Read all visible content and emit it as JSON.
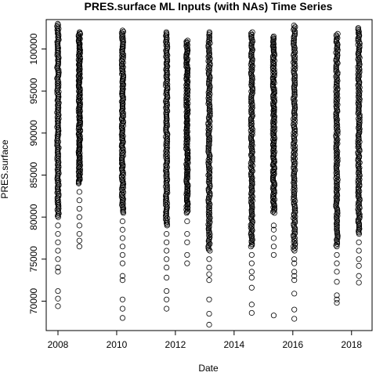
{
  "chart_data": {
    "type": "scatter",
    "title": "PRES.surface ML Inputs (with NAs) Time Series",
    "xlabel": "Date",
    "ylabel": "PRES.surface",
    "xlim": [
      2007.6,
      2018.7
    ],
    "ylim": [
      66500,
      103500
    ],
    "x_ticks": [
      2008,
      2010,
      2012,
      2014,
      2016,
      2018
    ],
    "x_tick_labels": [
      "2008",
      "2010",
      "2012",
      "2014",
      "2016",
      "2018"
    ],
    "y_ticks": [
      70000,
      75000,
      80000,
      85000,
      90000,
      95000,
      100000
    ],
    "y_tick_labels": [
      "70000",
      "75000",
      "80000",
      "85000",
      "90000",
      "95000",
      "100000"
    ],
    "grid": false,
    "legend": "none",
    "series": [
      {
        "clusters": [
          {
            "x": 2008.0,
            "dense_range": [
              80000,
              103000
            ],
            "sparse": [
              79000,
              78000,
              77000,
              76000,
              75000,
              74000,
              73500,
              71200,
              70300,
              69400
            ]
          },
          {
            "x": 2008.73,
            "dense_range": [
              84000,
              102000
            ],
            "sparse": [
              83000,
              82000,
              81000,
              80000,
              79000,
              78000,
              77200,
              76500
            ]
          },
          {
            "x": 2010.2,
            "dense_range": [
              80500,
              102200
            ],
            "sparse": [
              79500,
              78500,
              77500,
              76500,
              75500,
              74500,
              73000,
              72500,
              70200,
              69100,
              68000
            ]
          },
          {
            "x": 2011.7,
            "dense_range": [
              79000,
              102000
            ],
            "sparse": [
              78000,
              77000,
              76000,
              75000,
              74000,
              72800,
              71200,
              70200,
              69100
            ]
          },
          {
            "x": 2012.4,
            "dense_range": [
              80500,
              101000
            ],
            "sparse": [
              79500,
              78000,
              77000,
              75500,
              74500
            ]
          },
          {
            "x": 2013.15,
            "dense_range": [
              76000,
              102000
            ],
            "sparse": [
              75000,
              74000,
              73200,
              72500,
              70200,
              68500,
              67200
            ]
          },
          {
            "x": 2014.6,
            "dense_range": [
              76500,
              102000
            ],
            "sparse": [
              75500,
              74500,
              73500,
              72800,
              71600,
              69600,
              68600
            ]
          },
          {
            "x": 2015.35,
            "dense_range": [
              80500,
              101500
            ],
            "sparse": [
              79000,
              78500,
              77500,
              76500,
              75500,
              68300
            ]
          },
          {
            "x": 2016.05,
            "dense_range": [
              76000,
              102800
            ],
            "sparse": [
              75000,
              74500,
              73500,
              73000,
              72500,
              70900,
              69000,
              67900
            ]
          },
          {
            "x": 2017.5,
            "dense_range": [
              76500,
              101800
            ],
            "sparse": [
              75500,
              74500,
              73500,
              72300,
              70700,
              70200,
              69800
            ]
          },
          {
            "x": 2018.25,
            "dense_range": [
              78000,
              102500
            ],
            "sparse": [
              77000,
              76000,
              75000,
              74200,
              73000,
              72200
            ]
          }
        ]
      }
    ]
  }
}
